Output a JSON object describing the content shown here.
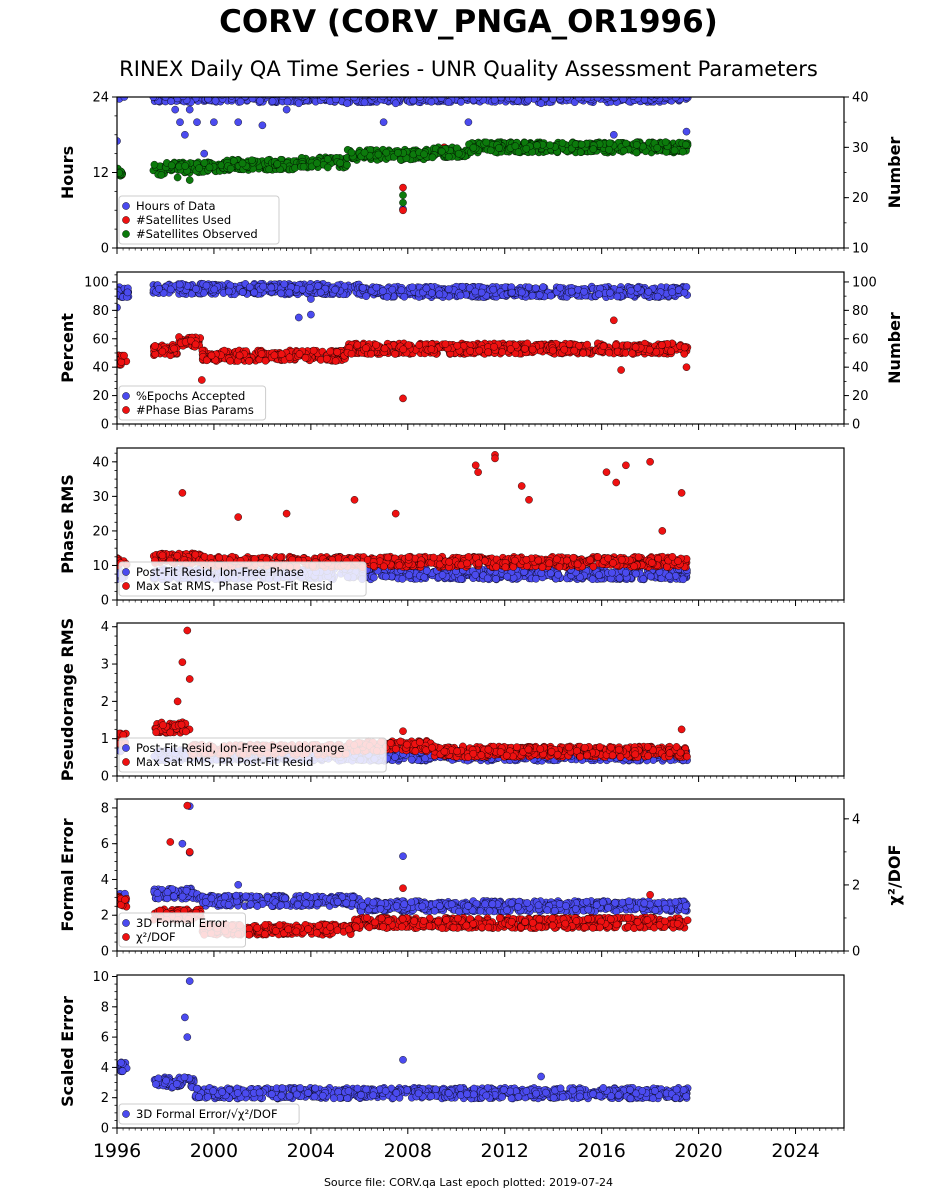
{
  "station_title": "CORV (CORV_PNGA_OR1996)",
  "subtitle": "RINEX Daily QA Time Series - UNR Quality Assessment Parameters",
  "footer": "Source file: CORV.qa Last epoch plotted: 2019-07-24",
  "colors": {
    "blue": "#4b4bef",
    "red": "#ee1111",
    "green": "#0c7a0c"
  },
  "chart_data": [
    {
      "type": "scatter",
      "panel": "hours-satellites",
      "ylabel": "Hours",
      "ylabel_right": "Number",
      "xlim": [
        1996,
        2026
      ],
      "ylim": [
        0,
        24
      ],
      "ylim_right": [
        10,
        40
      ],
      "yticks": [
        0,
        12,
        24
      ],
      "yticks_right": [
        10,
        20,
        30,
        40
      ],
      "legend_position": "lower-left",
      "series": [
        {
          "name": "Hours of Data",
          "color": "blue",
          "axis": "left",
          "points": [
            [
              1996.0,
              17.0
            ],
            [
              1996.1,
              23.7
            ],
            [
              1996.3,
              24.0
            ],
            [
              1997.5,
              24.0
            ],
            [
              1998.0,
              24.0
            ],
            [
              1998.4,
              22.0
            ],
            [
              1998.6,
              20.0
            ],
            [
              1998.8,
              18.0
            ],
            [
              1999.0,
              22.0
            ],
            [
              1999.3,
              20.0
            ],
            [
              1999.6,
              15.0
            ],
            [
              2000.0,
              20.0
            ],
            [
              2001.0,
              20.0
            ],
            [
              2002.0,
              19.5
            ],
            [
              2003.0,
              22.0
            ],
            [
              2003.5,
              23.0
            ],
            [
              2004.5,
              24.0
            ],
            [
              2005.5,
              23.0
            ],
            [
              2007.0,
              20.0
            ],
            [
              2007.5,
              23.0
            ],
            [
              2007.8,
              6.2
            ],
            [
              2008.5,
              24.0
            ],
            [
              2010.5,
              20.0
            ],
            [
              2013.5,
              23.0
            ],
            [
              2016.5,
              18.0
            ],
            [
              2019.5,
              18.5
            ],
            [
              2019.5,
              24.0
            ]
          ],
          "band": {
            "from": 1997.5,
            "to": 2019.55,
            "y": 24.0
          }
        },
        {
          "name": "#Satellites Used",
          "color": "red",
          "axis": "right",
          "points": [
            [
              1996.0,
              25.5
            ],
            [
              1996.2,
              24.5
            ],
            [
              2007.8,
              22.0
            ],
            [
              2007.8,
              17.5
            ],
            [
              2009.5,
              30.0
            ]
          ]
        },
        {
          "name": "#Satellites Observed",
          "color": "green",
          "axis": "right",
          "band_segments": [
            [
              1996.0,
              1996.3,
              25.0
            ],
            [
              1997.5,
              1998.0,
              25.5
            ],
            [
              1998.0,
              2000.5,
              26.0
            ],
            [
              2000.5,
              2003.5,
              26.5
            ],
            [
              2003.5,
              2005.5,
              27.0
            ],
            [
              2005.5,
              2009.0,
              28.5
            ],
            [
              2009.0,
              2010.5,
              29.0
            ],
            [
              2010.5,
              2019.55,
              30.0
            ]
          ],
          "points": [
            [
              2007.8,
              19.0
            ],
            [
              2007.8,
              20.5
            ],
            [
              1998.5,
              24.0
            ],
            [
              1999.0,
              23.5
            ]
          ]
        }
      ]
    },
    {
      "type": "scatter",
      "panel": "percent-phase-bias",
      "ylabel": "Percent",
      "ylabel_right": "Number",
      "xlim": [
        1996,
        2026
      ],
      "ylim": [
        0,
        107
      ],
      "ylim_right": [
        0,
        107
      ],
      "yticks": [
        0,
        20,
        40,
        60,
        80,
        100
      ],
      "yticks_right": [
        0,
        20,
        40,
        60,
        80,
        100
      ],
      "legend_position": "lower-left",
      "series": [
        {
          "name": "%Epochs Accepted",
          "color": "blue",
          "band_segments": [
            [
              1996.0,
              1996.5,
              93
            ],
            [
              1997.5,
              2006.0,
              95
            ],
            [
              2006.0,
              2019.55,
              93
            ]
          ],
          "points": [
            [
              1996.0,
              82
            ],
            [
              2003.5,
              75
            ],
            [
              2004.0,
              77
            ],
            [
              2004.0,
              88
            ]
          ]
        },
        {
          "name": "#Phase Bias Params",
          "color": "red",
          "band_segments": [
            [
              1996.0,
              1996.4,
              45
            ],
            [
              1997.5,
              1998.5,
              52
            ],
            [
              1998.5,
              1999.5,
              58
            ],
            [
              1999.5,
              2005.5,
              48
            ],
            [
              2005.5,
              2019.55,
              53
            ]
          ],
          "points": [
            [
              1999.5,
              31
            ],
            [
              2007.8,
              18
            ],
            [
              2016.5,
              73
            ],
            [
              2016.8,
              38
            ],
            [
              2019.5,
              40
            ]
          ]
        }
      ]
    },
    {
      "type": "scatter",
      "panel": "phase-rms",
      "ylabel": "Phase RMS",
      "xlim": [
        1996,
        2026
      ],
      "ylim": [
        0,
        44
      ],
      "yticks": [
        0,
        10,
        20,
        30,
        40
      ],
      "legend_position": "lower-left",
      "series": [
        {
          "name": "Post-Fit Resid, Ion-Free Phase",
          "color": "blue",
          "band_segments": [
            [
              1996.0,
              1996.4,
              7.5
            ],
            [
              1997.5,
              2019.55,
              7.5
            ]
          ]
        },
        {
          "name": "Max Sat RMS, Phase Post-Fit Resid",
          "color": "red",
          "band_segments": [
            [
              1996.0,
              1996.4,
              11
            ],
            [
              1997.5,
              1999.5,
              12
            ],
            [
              1999.5,
              2019.55,
              11
            ]
          ],
          "points": [
            [
              1998.7,
              31
            ],
            [
              2001.0,
              24
            ],
            [
              2003.0,
              25
            ],
            [
              2005.8,
              29
            ],
            [
              2007.5,
              25
            ],
            [
              2010.8,
              39
            ],
            [
              2010.9,
              37
            ],
            [
              2011.6,
              42
            ],
            [
              2011.6,
              41
            ],
            [
              2012.7,
              33
            ],
            [
              2013.0,
              29
            ],
            [
              2016.2,
              37
            ],
            [
              2016.6,
              34
            ],
            [
              2017.0,
              39
            ],
            [
              2018.0,
              40
            ],
            [
              2019.3,
              31
            ],
            [
              2018.5,
              20
            ]
          ]
        }
      ]
    },
    {
      "type": "scatter",
      "panel": "pseudorange-rms",
      "ylabel": "Pseudorange RMS",
      "xlim": [
        1996,
        2026
      ],
      "ylim": [
        0,
        4.1
      ],
      "yticks": [
        0,
        1,
        2,
        3,
        4
      ],
      "legend_position": "lower-left",
      "series": [
        {
          "name": "Post-Fit Resid, Ion-Free Pseudorange",
          "color": "blue",
          "band_segments": [
            [
              1996.0,
              1996.4,
              0.8
            ],
            [
              1997.5,
              2019.55,
              0.55
            ]
          ]
        },
        {
          "name": "Max Sat RMS, PR Post-Fit Resid",
          "color": "red",
          "band_segments": [
            [
              1996.0,
              1996.4,
              1.0
            ],
            [
              1997.5,
              1999.0,
              1.3
            ],
            [
              1999.0,
              2005.5,
              0.7
            ],
            [
              2005.5,
              2009.0,
              0.8
            ],
            [
              2009.0,
              2019.55,
              0.65
            ]
          ],
          "points": [
            [
              1998.5,
              2.0
            ],
            [
              1998.7,
              3.05
            ],
            [
              1998.9,
              3.9
            ],
            [
              1999.0,
              2.6
            ],
            [
              2007.8,
              1.2
            ],
            [
              2019.3,
              1.25
            ]
          ]
        }
      ]
    },
    {
      "type": "scatter",
      "panel": "formal-error",
      "ylabel": "Formal Error",
      "ylabel_right": "χ²/DOF",
      "xlim": [
        1996,
        2026
      ],
      "ylim": [
        0,
        8.5
      ],
      "ylim_right": [
        0,
        4.6
      ],
      "yticks": [
        0,
        2,
        4,
        6,
        8
      ],
      "yticks_right": [
        0,
        2,
        4
      ],
      "legend_position": "lower-left",
      "series": [
        {
          "name": "3D Formal Error",
          "color": "blue",
          "axis": "left",
          "band_segments": [
            [
              1996.0,
              1996.4,
              3.0
            ],
            [
              1997.5,
              1999.5,
              3.2
            ],
            [
              1999.5,
              2006.0,
              2.8
            ],
            [
              2006.0,
              2019.55,
              2.5
            ]
          ],
          "points": [
            [
              1998.7,
              6.0
            ],
            [
              1999.0,
              8.1
            ],
            [
              1999.0,
              5.5
            ],
            [
              2007.8,
              5.3
            ],
            [
              2001.0,
              3.7
            ]
          ]
        },
        {
          "name": "χ²/DOF",
          "color": "red",
          "axis": "right",
          "band_segments": [
            [
              1996.0,
              1996.4,
              1.5
            ],
            [
              1997.5,
              1999.5,
              1.1
            ],
            [
              1999.5,
              2005.8,
              0.65
            ],
            [
              2005.8,
              2019.55,
              0.85
            ]
          ],
          "points": [
            [
              1998.9,
              4.4
            ],
            [
              1999.0,
              3.0
            ],
            [
              1998.2,
              3.3
            ],
            [
              2007.8,
              1.9
            ],
            [
              2018.0,
              1.7
            ]
          ]
        }
      ]
    },
    {
      "type": "scatter",
      "panel": "scaled-error",
      "ylabel": "Scaled Error",
      "xlim": [
        1996,
        2026
      ],
      "ylim": [
        0,
        10.1
      ],
      "yticks": [
        0,
        2,
        4,
        6,
        8,
        10
      ],
      "xticks": [
        1996,
        2000,
        2004,
        2008,
        2012,
        2016,
        2020,
        2024
      ],
      "legend_position": "lower-left",
      "series": [
        {
          "name": "3D Formal Error/√χ²/DOF",
          "color": "blue",
          "band_segments": [
            [
              1996.0,
              1996.4,
              4.0
            ],
            [
              1997.5,
              1999.2,
              3.0
            ],
            [
              1999.2,
              2019.55,
              2.3
            ]
          ],
          "points": [
            [
              1999.0,
              9.7
            ],
            [
              1998.8,
              7.3
            ],
            [
              1998.9,
              6.0
            ],
            [
              2007.8,
              4.5
            ],
            [
              2013.5,
              3.4
            ]
          ]
        }
      ]
    }
  ]
}
